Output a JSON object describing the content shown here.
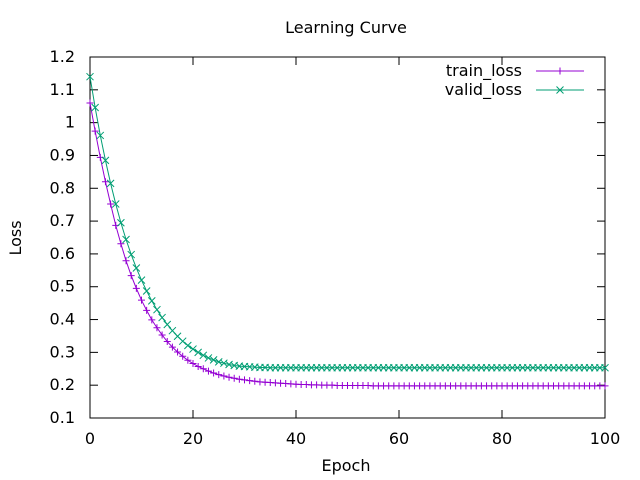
{
  "chart_data": {
    "type": "line",
    "title": "Learning Curve",
    "xlabel": "Epoch",
    "ylabel": "Loss",
    "xlim": [
      0,
      100
    ],
    "ylim": [
      0.1,
      1.2
    ],
    "xticks": [
      0,
      20,
      40,
      60,
      80,
      100
    ],
    "yticks": [
      0.1,
      0.2,
      0.3,
      0.4,
      0.5,
      0.6,
      0.7,
      0.8,
      0.9,
      1,
      1.1,
      1.2
    ],
    "ytick_labels": [
      "0.1",
      "0.2",
      "0.3",
      "0.4",
      "0.5",
      "0.6",
      "0.7",
      "0.8",
      "0.9",
      "1",
      "1.1",
      "1.2"
    ],
    "grid": false,
    "legend_position": "top-right",
    "series": [
      {
        "name": "train_loss",
        "legend_label": "train_loss",
        "marker": "plus",
        "color": "#9400d3",
        "x": [
          0,
          1,
          2,
          3,
          4,
          5,
          6,
          7,
          8,
          9,
          10,
          11,
          12,
          13,
          14,
          15,
          16,
          17,
          18,
          19,
          20,
          21,
          22,
          23,
          24,
          25,
          26,
          27,
          28,
          29,
          30,
          31,
          32,
          33,
          34,
          35,
          36,
          37,
          38,
          39,
          40,
          41,
          42,
          43,
          44,
          45,
          46,
          47,
          48,
          49,
          50,
          51,
          52,
          53,
          54,
          55,
          56,
          57,
          58,
          59,
          60,
          61,
          62,
          63,
          64,
          65,
          66,
          67,
          68,
          69,
          70,
          71,
          72,
          73,
          74,
          75,
          76,
          77,
          78,
          79,
          80,
          81,
          82,
          83,
          84,
          85,
          86,
          87,
          88,
          89,
          90,
          91,
          92,
          93,
          94,
          95,
          96,
          97,
          98,
          99,
          100
        ],
        "y": [
          1.06,
          0.974,
          0.894,
          0.82,
          0.752,
          0.687,
          0.631,
          0.579,
          0.534,
          0.495,
          0.459,
          0.428,
          0.399,
          0.375,
          0.353,
          0.333,
          0.316,
          0.301,
          0.288,
          0.276,
          0.266,
          0.257,
          0.25,
          0.243,
          0.237,
          0.232,
          0.228,
          0.224,
          0.221,
          0.218,
          0.216,
          0.214,
          0.212,
          0.21,
          0.209,
          0.208,
          0.207,
          0.206,
          0.205,
          0.204,
          0.203,
          0.202,
          0.202,
          0.201,
          0.201,
          0.2,
          0.2,
          0.2,
          0.199,
          0.199,
          0.199,
          0.199,
          0.199,
          0.199,
          0.199,
          0.198,
          0.198,
          0.198,
          0.198,
          0.198,
          0.198,
          0.198,
          0.198,
          0.198,
          0.198,
          0.198,
          0.198,
          0.198,
          0.198,
          0.198,
          0.198,
          0.198,
          0.198,
          0.198,
          0.198,
          0.198,
          0.198,
          0.198,
          0.198,
          0.198,
          0.198,
          0.198,
          0.198,
          0.198,
          0.198,
          0.198,
          0.198,
          0.198,
          0.198,
          0.198,
          0.198,
          0.198,
          0.198,
          0.198,
          0.198,
          0.198,
          0.198,
          0.198,
          0.198,
          0.198,
          0.198
        ]
      },
      {
        "name": "valid_loss",
        "legend_label": "valid_loss",
        "marker": "cross",
        "color": "#009e73",
        "x": [
          0,
          1,
          2,
          3,
          4,
          5,
          6,
          7,
          8,
          9,
          10,
          11,
          12,
          13,
          14,
          15,
          16,
          17,
          18,
          19,
          20,
          21,
          22,
          23,
          24,
          25,
          26,
          27,
          28,
          29,
          30,
          31,
          32,
          33,
          34,
          35,
          36,
          37,
          38,
          39,
          40,
          41,
          42,
          43,
          44,
          45,
          46,
          47,
          48,
          49,
          50,
          51,
          52,
          53,
          54,
          55,
          56,
          57,
          58,
          59,
          60,
          61,
          62,
          63,
          64,
          65,
          66,
          67,
          68,
          69,
          70,
          71,
          72,
          73,
          74,
          75,
          76,
          77,
          78,
          79,
          80,
          81,
          82,
          83,
          84,
          85,
          86,
          87,
          88,
          89,
          90,
          91,
          92,
          93,
          94,
          95,
          96,
          97,
          98,
          99,
          100
        ],
        "y": [
          1.14,
          1.046,
          0.961,
          0.885,
          0.815,
          0.752,
          0.695,
          0.644,
          0.598,
          0.557,
          0.52,
          0.487,
          0.457,
          0.43,
          0.406,
          0.385,
          0.366,
          0.349,
          0.334,
          0.321,
          0.31,
          0.3,
          0.291,
          0.283,
          0.277,
          0.271,
          0.267,
          0.263,
          0.26,
          0.258,
          0.257,
          0.256,
          0.255,
          0.254,
          0.254,
          0.253,
          0.253,
          0.253,
          0.253,
          0.253,
          0.253,
          0.253,
          0.253,
          0.253,
          0.253,
          0.253,
          0.253,
          0.253,
          0.253,
          0.253,
          0.253,
          0.253,
          0.253,
          0.253,
          0.253,
          0.253,
          0.253,
          0.253,
          0.253,
          0.253,
          0.253,
          0.253,
          0.253,
          0.253,
          0.253,
          0.253,
          0.253,
          0.253,
          0.253,
          0.253,
          0.253,
          0.253,
          0.253,
          0.253,
          0.253,
          0.253,
          0.253,
          0.253,
          0.253,
          0.253,
          0.253,
          0.253,
          0.253,
          0.253,
          0.253,
          0.253,
          0.253,
          0.253,
          0.253,
          0.253,
          0.253,
          0.253,
          0.253,
          0.253,
          0.253,
          0.253,
          0.253,
          0.253,
          0.253,
          0.253,
          0.253
        ]
      }
    ]
  }
}
